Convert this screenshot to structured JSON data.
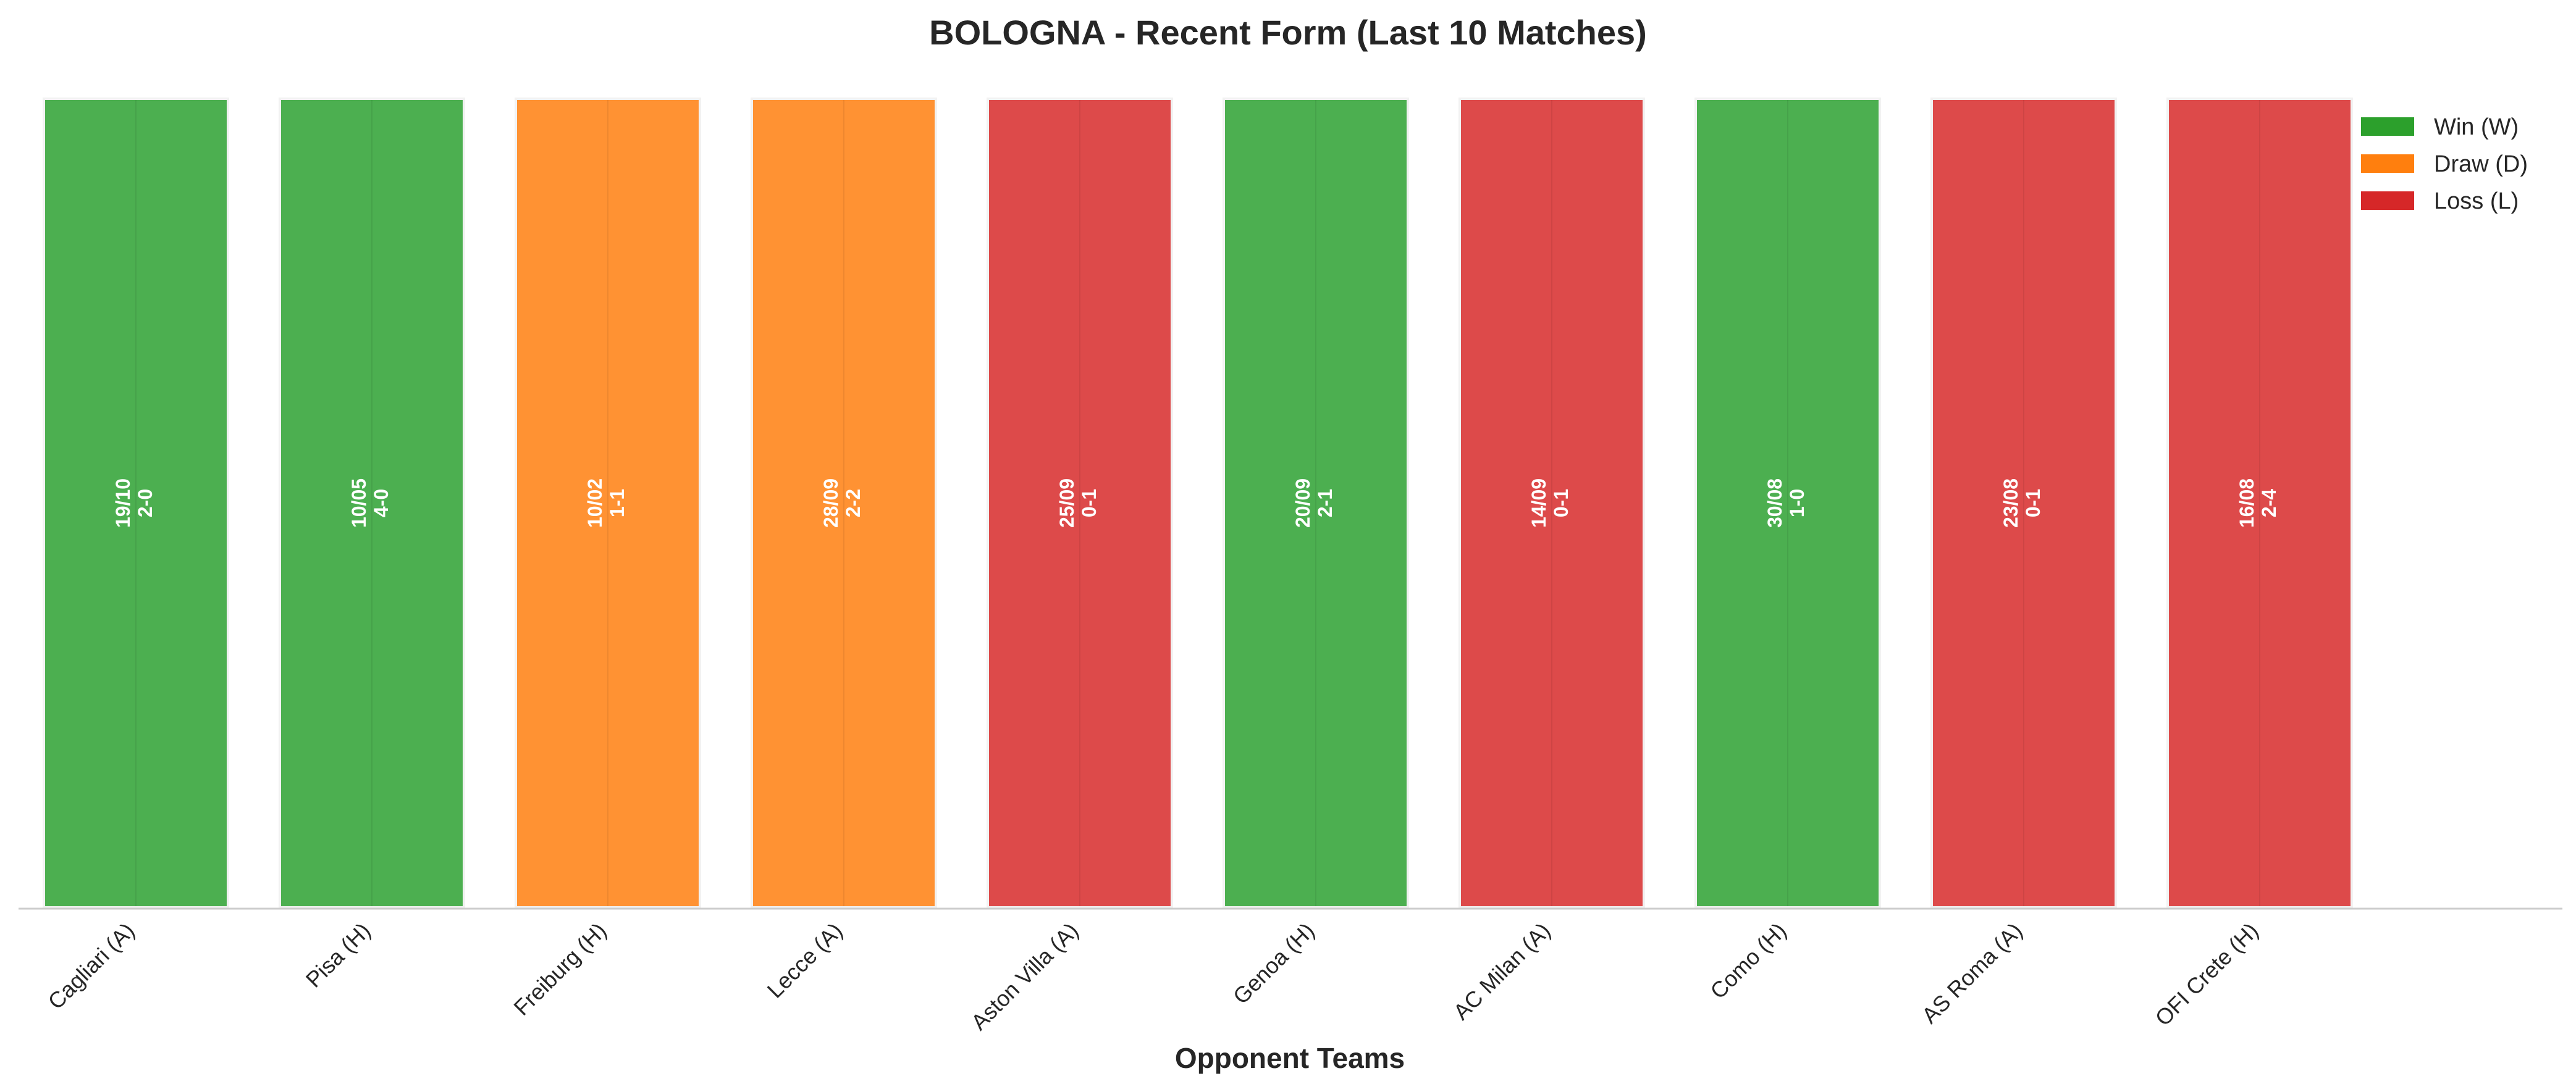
{
  "chart_data": {
    "type": "bar",
    "title": "BOLOGNA - Recent Form (Last 10 Matches)",
    "xlabel": "Opponent Teams",
    "ylabel": "",
    "ylim": [
      0,
      1
    ],
    "grid": false,
    "legend_position": "top-right",
    "categories": [
      "Cagliari (A)",
      "Pisa (H)",
      "Freiburg (H)",
      "Lecce (A)",
      "Aston Villa (A)",
      "Genoa (H)",
      "AC Milan (A)",
      "Como (H)",
      "AS Roma (A)",
      "OFI Crete (H)"
    ],
    "values": [
      1,
      1,
      1,
      1,
      1,
      1,
      1,
      1,
      1,
      1
    ],
    "results": [
      "W",
      "W",
      "D",
      "D",
      "L",
      "W",
      "L",
      "W",
      "L",
      "L"
    ],
    "dates": [
      "19/10",
      "10/05",
      "10/02",
      "28/09",
      "25/09",
      "20/09",
      "14/09",
      "30/08",
      "23/08",
      "16/08"
    ],
    "scores": [
      "2-0",
      "4-0",
      "1-1",
      "2-2",
      "0-1",
      "2-1",
      "0-1",
      "1-0",
      "0-1",
      "2-4"
    ],
    "legend": [
      {
        "key": "W",
        "label": "Win (W)"
      },
      {
        "key": "D",
        "label": "Draw (D)"
      },
      {
        "key": "L",
        "label": "Loss (L)"
      }
    ],
    "colors": {
      "W": "#4caf50",
      "D": "#ff9233",
      "L": "#dd4a4a",
      "W_legend": "#2ca02c",
      "D_legend": "#ff7f0e",
      "L_legend": "#d62728"
    }
  }
}
